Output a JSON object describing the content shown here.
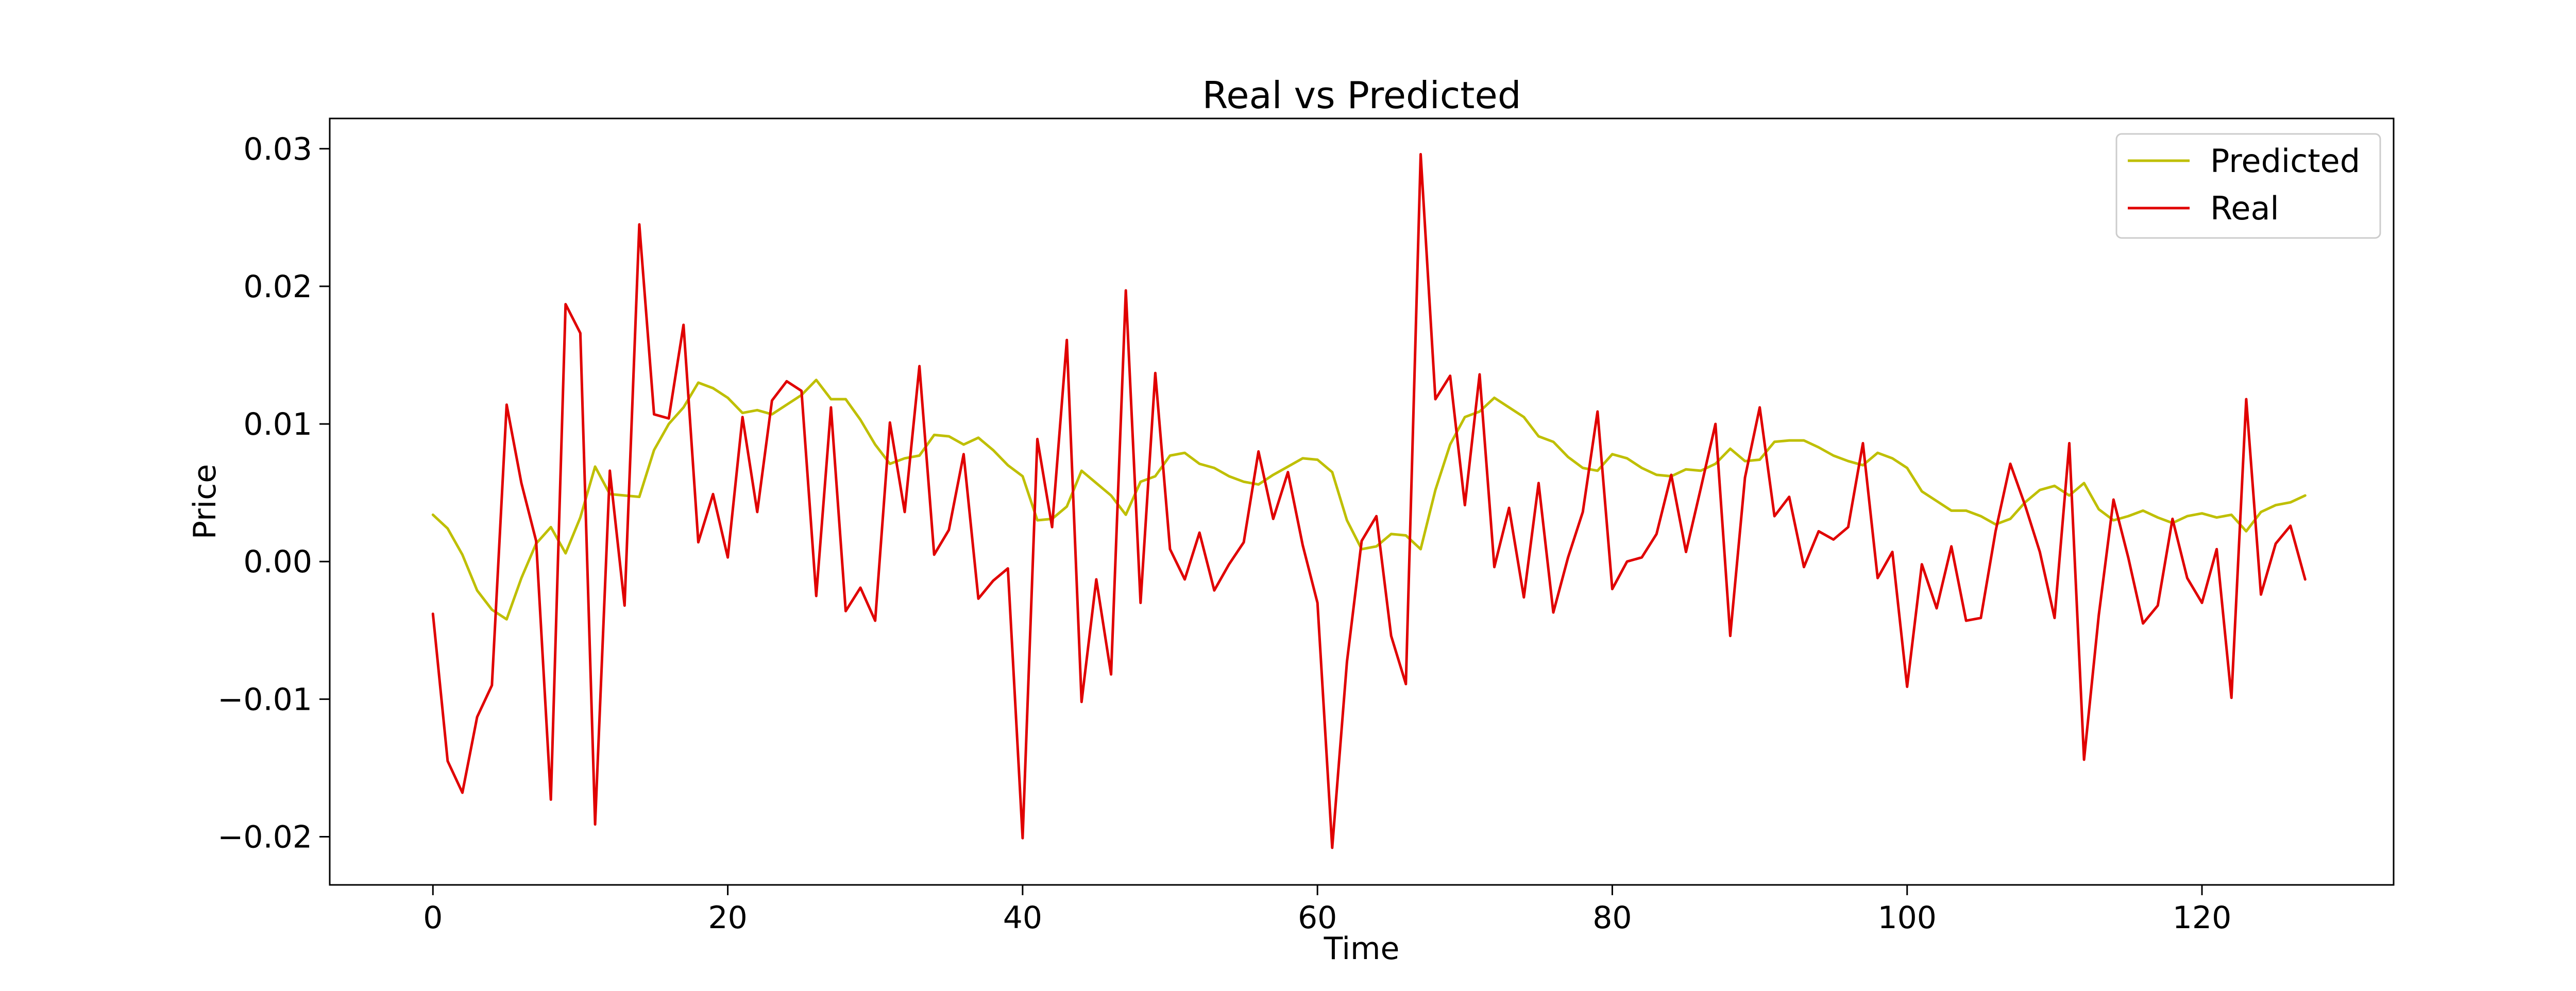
{
  "chart_data": {
    "type": "line",
    "title": "Real vs Predicted",
    "xlabel": "Time",
    "ylabel": "Price",
    "xlim": [
      -7,
      133
    ],
    "ylim": [
      -0.0235,
      0.0322
    ],
    "xticks": [
      0,
      20,
      40,
      60,
      80,
      100,
      120
    ],
    "xtick_labels": [
      "0",
      "20",
      "40",
      "60",
      "80",
      "100",
      "120"
    ],
    "yticks": [
      -0.02,
      -0.01,
      0.0,
      0.01,
      0.02,
      0.03
    ],
    "ytick_labels": [
      "−0.02",
      "−0.01",
      "0.00",
      "0.01",
      "0.02",
      "0.03"
    ],
    "grid": false,
    "legend_position": "top-right",
    "x": [
      0,
      1,
      2,
      3,
      4,
      5,
      6,
      7,
      8,
      9,
      10,
      11,
      12,
      13,
      14,
      15,
      16,
      17,
      18,
      19,
      20,
      21,
      22,
      23,
      24,
      25,
      26,
      27,
      28,
      29,
      30,
      31,
      32,
      33,
      34,
      35,
      36,
      37,
      38,
      39,
      40,
      41,
      42,
      43,
      44,
      45,
      46,
      47,
      48,
      49,
      50,
      51,
      52,
      53,
      54,
      55,
      56,
      57,
      58,
      59,
      60,
      61,
      62,
      63,
      64,
      65,
      66,
      67,
      68,
      69,
      70,
      71,
      72,
      73,
      74,
      75,
      76,
      77,
      78,
      79,
      80,
      81,
      82,
      83,
      84,
      85,
      86,
      87,
      88,
      89,
      90,
      91,
      92,
      93,
      94,
      95,
      96,
      97,
      98,
      99,
      100,
      101,
      102,
      103,
      104,
      105,
      106,
      107,
      108,
      109,
      110,
      111,
      112,
      113,
      114,
      115,
      116,
      117,
      118,
      119,
      120,
      121,
      122,
      123,
      124,
      125,
      126,
      127
    ],
    "series": [
      {
        "name": "Predicted",
        "color": "#bfbf00",
        "values": [
          0.0034,
          0.0024,
          0.0005,
          -0.0021,
          -0.0035,
          -0.0042,
          -0.0012,
          0.0013,
          0.0025,
          0.0006,
          0.0032,
          0.0069,
          0.0049,
          0.0048,
          0.0047,
          0.0081,
          0.01,
          0.0112,
          0.013,
          0.0126,
          0.0119,
          0.0108,
          0.011,
          0.0107,
          0.0114,
          0.0121,
          0.0132,
          0.0118,
          0.0118,
          0.0103,
          0.0085,
          0.0071,
          0.0075,
          0.0077,
          0.0092,
          0.0091,
          0.0085,
          0.009,
          0.0081,
          0.007,
          0.0062,
          0.003,
          0.0031,
          0.004,
          0.0066,
          0.0057,
          0.0048,
          0.0034,
          0.0058,
          0.0062,
          0.0077,
          0.0079,
          0.0071,
          0.0068,
          0.0062,
          0.0058,
          0.0056,
          0.0063,
          0.0069,
          0.0075,
          0.0074,
          0.0065,
          0.003,
          0.0009,
          0.0011,
          0.002,
          0.0019,
          0.0009,
          0.0052,
          0.0085,
          0.0105,
          0.0109,
          0.0119,
          0.0112,
          0.0105,
          0.0091,
          0.0087,
          0.0076,
          0.0068,
          0.0066,
          0.0078,
          0.0075,
          0.0068,
          0.0063,
          0.0062,
          0.0067,
          0.0066,
          0.0071,
          0.0082,
          0.0073,
          0.0074,
          0.0087,
          0.0088,
          0.0088,
          0.0083,
          0.0077,
          0.0073,
          0.007,
          0.0079,
          0.0075,
          0.0068,
          0.0051,
          0.0044,
          0.0037,
          0.0037,
          0.0033,
          0.0027,
          0.0031,
          0.0043,
          0.0052,
          0.0055,
          0.0048,
          0.0057,
          0.0038,
          0.003,
          0.0033,
          0.0037,
          0.0032,
          0.0028,
          0.0033,
          0.0035,
          0.0032,
          0.0034,
          0.0022,
          0.0036,
          0.0041,
          0.0043,
          0.0048
        ]
      },
      {
        "name": "Real",
        "color": "#e00000",
        "values": [
          -0.0038,
          -0.0145,
          -0.0168,
          -0.0113,
          -0.009,
          0.0114,
          0.0057,
          0.0015,
          -0.0173,
          0.0187,
          0.0166,
          -0.0191,
          0.0066,
          -0.0032,
          0.0245,
          0.0107,
          0.0104,
          0.0172,
          0.0014,
          0.0049,
          0.0003,
          0.0105,
          0.0036,
          0.0117,
          0.0131,
          0.0124,
          -0.0025,
          0.0112,
          -0.0036,
          -0.0019,
          -0.0043,
          0.0101,
          0.0036,
          0.0142,
          0.0005,
          0.0023,
          0.0078,
          -0.0027,
          -0.0014,
          -0.0005,
          -0.0201,
          0.0089,
          0.0025,
          0.0161,
          -0.0102,
          -0.0013,
          -0.0082,
          0.0197,
          -0.003,
          0.0137,
          0.0009,
          -0.0013,
          0.0021,
          -0.0021,
          -0.0002,
          0.0014,
          0.008,
          0.0031,
          0.0065,
          0.0012,
          -0.003,
          -0.0208,
          -0.0073,
          0.0015,
          0.0033,
          -0.0054,
          -0.0089,
          0.0296,
          0.0118,
          0.0135,
          0.0041,
          0.0136,
          -0.0004,
          0.0039,
          -0.0026,
          0.0057,
          -0.0037,
          0.0003,
          0.0036,
          0.0109,
          -0.002,
          0.0,
          0.0003,
          0.002,
          0.0063,
          0.0007,
          0.0053,
          0.01,
          -0.0054,
          0.0061,
          0.0112,
          0.0033,
          0.0047,
          -0.0004,
          0.0022,
          0.0016,
          0.0025,
          0.0086,
          -0.0012,
          0.0007,
          -0.0091,
          -0.0002,
          -0.0034,
          0.0011,
          -0.0043,
          -0.0041,
          0.0022,
          0.0071,
          0.0041,
          0.0007,
          -0.0041,
          0.0086,
          -0.0144,
          -0.0039,
          0.0045,
          0.0003,
          -0.0045,
          -0.0032,
          0.0031,
          -0.0012,
          -0.003,
          0.0009,
          -0.0099,
          0.0118,
          -0.0024,
          0.0013,
          0.0026,
          -0.0013
        ]
      }
    ]
  }
}
